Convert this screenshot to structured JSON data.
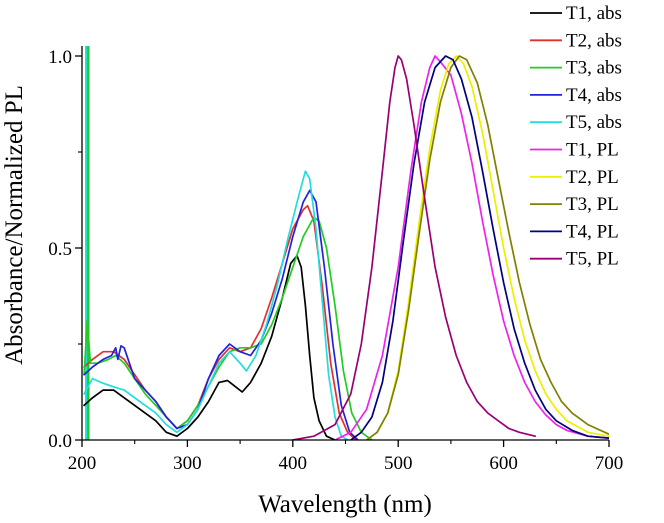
{
  "chart_data": {
    "type": "line",
    "title": "",
    "xlabel": "Wavelength (nm)",
    "ylabel": "Absorbance/Normalized PL",
    "xlim": [
      200,
      700
    ],
    "ylim": [
      0,
      1.0
    ],
    "x_ticks": [
      200,
      300,
      400,
      500,
      600,
      700
    ],
    "y_ticks": [
      0.0,
      0.5,
      1.0
    ],
    "x_tick_labels": [
      "200",
      "300",
      "400",
      "500",
      "600",
      "700"
    ],
    "y_tick_labels": [
      "0.0",
      "0.5",
      "1.0"
    ],
    "grid": false,
    "legend_position": "top-right",
    "series": [
      {
        "name": "T1, abs",
        "color": "#000000",
        "points": [
          [
            202,
            0.09
          ],
          [
            210,
            0.11
          ],
          [
            220,
            0.13
          ],
          [
            230,
            0.13
          ],
          [
            240,
            0.11
          ],
          [
            250,
            0.09
          ],
          [
            260,
            0.07
          ],
          [
            270,
            0.05
          ],
          [
            280,
            0.02
          ],
          [
            290,
            0.01
          ],
          [
            300,
            0.03
          ],
          [
            310,
            0.06
          ],
          [
            320,
            0.1
          ],
          [
            330,
            0.15
          ],
          [
            338,
            0.155
          ],
          [
            345,
            0.14
          ],
          [
            352,
            0.125
          ],
          [
            360,
            0.15
          ],
          [
            370,
            0.2
          ],
          [
            380,
            0.27
          ],
          [
            390,
            0.37
          ],
          [
            398,
            0.46
          ],
          [
            404,
            0.48
          ],
          [
            408,
            0.45
          ],
          [
            412,
            0.35
          ],
          [
            416,
            0.22
          ],
          [
            420,
            0.11
          ],
          [
            425,
            0.05
          ],
          [
            432,
            0.01
          ],
          [
            440,
            0.0
          ]
        ]
      },
      {
        "name": "T2, abs",
        "color": "#e03030",
        "points": [
          [
            202,
            0.19
          ],
          [
            210,
            0.21
          ],
          [
            220,
            0.23
          ],
          [
            230,
            0.23
          ],
          [
            240,
            0.21
          ],
          [
            250,
            0.17
          ],
          [
            260,
            0.13
          ],
          [
            270,
            0.1
          ],
          [
            280,
            0.06
          ],
          [
            290,
            0.03
          ],
          [
            300,
            0.05
          ],
          [
            310,
            0.09
          ],
          [
            320,
            0.16
          ],
          [
            330,
            0.21
          ],
          [
            340,
            0.24
          ],
          [
            350,
            0.23
          ],
          [
            360,
            0.24
          ],
          [
            370,
            0.29
          ],
          [
            380,
            0.37
          ],
          [
            390,
            0.46
          ],
          [
            400,
            0.55
          ],
          [
            410,
            0.6
          ],
          [
            414,
            0.61
          ],
          [
            420,
            0.57
          ],
          [
            428,
            0.4
          ],
          [
            436,
            0.2
          ],
          [
            444,
            0.07
          ],
          [
            452,
            0.02
          ],
          [
            460,
            0.0
          ]
        ]
      },
      {
        "name": "T3, abs",
        "color": "#22cc22",
        "points": [
          [
            202,
            0.17
          ],
          [
            205,
            0.31
          ],
          [
            208,
            0.2
          ],
          [
            215,
            0.2
          ],
          [
            225,
            0.21
          ],
          [
            232,
            0.22
          ],
          [
            240,
            0.2
          ],
          [
            250,
            0.16
          ],
          [
            260,
            0.12
          ],
          [
            270,
            0.09
          ],
          [
            280,
            0.06
          ],
          [
            290,
            0.03
          ],
          [
            300,
            0.05
          ],
          [
            310,
            0.09
          ],
          [
            320,
            0.14
          ],
          [
            330,
            0.19
          ],
          [
            340,
            0.23
          ],
          [
            350,
            0.24
          ],
          [
            360,
            0.24
          ],
          [
            370,
            0.25
          ],
          [
            380,
            0.3
          ],
          [
            390,
            0.37
          ],
          [
            400,
            0.45
          ],
          [
            410,
            0.53
          ],
          [
            420,
            0.58
          ],
          [
            425,
            0.57
          ],
          [
            432,
            0.5
          ],
          [
            440,
            0.35
          ],
          [
            448,
            0.18
          ],
          [
            456,
            0.07
          ],
          [
            465,
            0.02
          ],
          [
            475,
            0.0
          ]
        ]
      },
      {
        "name": "T4, abs",
        "color": "#2222dd",
        "points": [
          [
            202,
            0.17
          ],
          [
            210,
            0.19
          ],
          [
            220,
            0.21
          ],
          [
            228,
            0.22
          ],
          [
            232,
            0.24
          ],
          [
            234,
            0.21
          ],
          [
            237,
            0.245
          ],
          [
            240,
            0.24
          ],
          [
            245,
            0.2
          ],
          [
            250,
            0.16
          ],
          [
            260,
            0.13
          ],
          [
            270,
            0.1
          ],
          [
            280,
            0.06
          ],
          [
            290,
            0.03
          ],
          [
            300,
            0.04
          ],
          [
            310,
            0.08
          ],
          [
            320,
            0.16
          ],
          [
            330,
            0.22
          ],
          [
            340,
            0.25
          ],
          [
            350,
            0.23
          ],
          [
            360,
            0.22
          ],
          [
            370,
            0.26
          ],
          [
            380,
            0.33
          ],
          [
            390,
            0.42
          ],
          [
            400,
            0.53
          ],
          [
            410,
            0.62
          ],
          [
            416,
            0.65
          ],
          [
            422,
            0.62
          ],
          [
            430,
            0.45
          ],
          [
            438,
            0.25
          ],
          [
            446,
            0.09
          ],
          [
            454,
            0.02
          ],
          [
            462,
            0.0
          ]
        ]
      },
      {
        "name": "T5, abs",
        "color": "#22dddd",
        "points": [
          [
            202,
            0.12
          ],
          [
            210,
            0.16
          ],
          [
            218,
            0.15
          ],
          [
            228,
            0.14
          ],
          [
            240,
            0.13
          ],
          [
            250,
            0.11
          ],
          [
            260,
            0.09
          ],
          [
            270,
            0.07
          ],
          [
            280,
            0.04
          ],
          [
            290,
            0.02
          ],
          [
            300,
            0.04
          ],
          [
            310,
            0.08
          ],
          [
            320,
            0.14
          ],
          [
            330,
            0.2
          ],
          [
            340,
            0.23
          ],
          [
            350,
            0.2
          ],
          [
            356,
            0.18
          ],
          [
            365,
            0.22
          ],
          [
            375,
            0.3
          ],
          [
            385,
            0.4
          ],
          [
            395,
            0.52
          ],
          [
            405,
            0.63
          ],
          [
            412,
            0.7
          ],
          [
            416,
            0.68
          ],
          [
            422,
            0.55
          ],
          [
            428,
            0.36
          ],
          [
            434,
            0.17
          ],
          [
            440,
            0.06
          ],
          [
            446,
            0.01
          ],
          [
            452,
            0.0
          ]
        ]
      },
      {
        "name": "T1, PL",
        "color": "#ee22ee",
        "points": [
          [
            440,
            0.0
          ],
          [
            455,
            0.02
          ],
          [
            470,
            0.08
          ],
          [
            485,
            0.22
          ],
          [
            500,
            0.45
          ],
          [
            512,
            0.7
          ],
          [
            522,
            0.88
          ],
          [
            530,
            0.97
          ],
          [
            535,
            1.0
          ],
          [
            540,
            0.985
          ],
          [
            550,
            0.95
          ],
          [
            560,
            0.85
          ],
          [
            570,
            0.72
          ],
          [
            580,
            0.57
          ],
          [
            590,
            0.43
          ],
          [
            600,
            0.31
          ],
          [
            610,
            0.22
          ],
          [
            620,
            0.15
          ],
          [
            630,
            0.1
          ],
          [
            640,
            0.065
          ],
          [
            650,
            0.04
          ],
          [
            660,
            0.025
          ],
          [
            680,
            0.01
          ],
          [
            700,
            0.005
          ]
        ]
      },
      {
        "name": "T2, PL",
        "color": "#eeee00",
        "points": [
          [
            470,
            0.0
          ],
          [
            480,
            0.02
          ],
          [
            490,
            0.07
          ],
          [
            500,
            0.18
          ],
          [
            510,
            0.36
          ],
          [
            520,
            0.57
          ],
          [
            530,
            0.76
          ],
          [
            540,
            0.91
          ],
          [
            548,
            0.98
          ],
          [
            555,
            1.0
          ],
          [
            562,
            0.98
          ],
          [
            570,
            0.92
          ],
          [
            580,
            0.8
          ],
          [
            590,
            0.65
          ],
          [
            600,
            0.5
          ],
          [
            610,
            0.37
          ],
          [
            620,
            0.26
          ],
          [
            630,
            0.18
          ],
          [
            640,
            0.12
          ],
          [
            650,
            0.08
          ],
          [
            660,
            0.05
          ],
          [
            680,
            0.02
          ],
          [
            700,
            0.01
          ]
        ]
      },
      {
        "name": "T3, PL",
        "color": "#808000",
        "points": [
          [
            470,
            0.0
          ],
          [
            480,
            0.02
          ],
          [
            490,
            0.07
          ],
          [
            500,
            0.17
          ],
          [
            510,
            0.34
          ],
          [
            520,
            0.54
          ],
          [
            530,
            0.73
          ],
          [
            540,
            0.88
          ],
          [
            550,
            0.97
          ],
          [
            558,
            1.0
          ],
          [
            565,
            0.99
          ],
          [
            575,
            0.93
          ],
          [
            585,
            0.82
          ],
          [
            595,
            0.68
          ],
          [
            605,
            0.54
          ],
          [
            615,
            0.41
          ],
          [
            625,
            0.3
          ],
          [
            635,
            0.21
          ],
          [
            645,
            0.15
          ],
          [
            655,
            0.1
          ],
          [
            665,
            0.07
          ],
          [
            680,
            0.04
          ],
          [
            700,
            0.015
          ]
        ]
      },
      {
        "name": "T4, PL",
        "color": "#000080",
        "points": [
          [
            455,
            0.0
          ],
          [
            465,
            0.02
          ],
          [
            475,
            0.06
          ],
          [
            485,
            0.15
          ],
          [
            495,
            0.31
          ],
          [
            505,
            0.52
          ],
          [
            515,
            0.72
          ],
          [
            525,
            0.88
          ],
          [
            535,
            0.97
          ],
          [
            545,
            1.0
          ],
          [
            552,
            0.99
          ],
          [
            560,
            0.94
          ],
          [
            570,
            0.84
          ],
          [
            580,
            0.7
          ],
          [
            590,
            0.55
          ],
          [
            600,
            0.41
          ],
          [
            610,
            0.29
          ],
          [
            620,
            0.2
          ],
          [
            630,
            0.13
          ],
          [
            640,
            0.08
          ],
          [
            650,
            0.05
          ],
          [
            665,
            0.025
          ],
          [
            680,
            0.01
          ],
          [
            700,
            0.005
          ]
        ]
      },
      {
        "name": "T5, PL",
        "color": "#990077",
        "points": [
          [
            400,
            0.0
          ],
          [
            420,
            0.01
          ],
          [
            440,
            0.04
          ],
          [
            455,
            0.12
          ],
          [
            465,
            0.25
          ],
          [
            475,
            0.45
          ],
          [
            485,
            0.7
          ],
          [
            492,
            0.88
          ],
          [
            497,
            0.97
          ],
          [
            500,
            1.0
          ],
          [
            503,
            0.99
          ],
          [
            508,
            0.94
          ],
          [
            515,
            0.82
          ],
          [
            525,
            0.63
          ],
          [
            535,
            0.45
          ],
          [
            545,
            0.32
          ],
          [
            555,
            0.22
          ],
          [
            565,
            0.15
          ],
          [
            575,
            0.1
          ],
          [
            585,
            0.07
          ],
          [
            595,
            0.05
          ],
          [
            605,
            0.03
          ],
          [
            615,
            0.02
          ],
          [
            630,
            0.01
          ]
        ]
      }
    ],
    "vertical_markers": [
      {
        "x": 204,
        "color": "#22dddd"
      },
      {
        "x": 206,
        "color": "#22cc22"
      }
    ]
  }
}
